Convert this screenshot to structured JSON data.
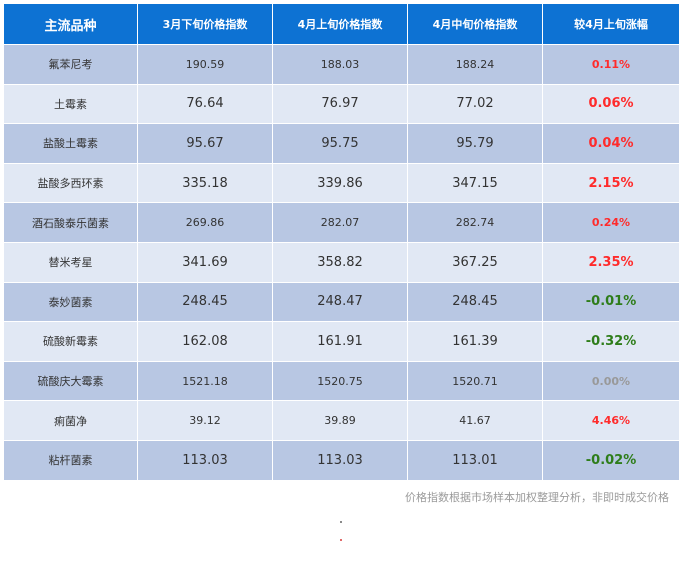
{
  "table": {
    "headers": [
      "主流品种",
      "3月下旬价格指数",
      "4月上旬价格指数",
      "4月中旬价格指数",
      "较4月上旬涨幅"
    ],
    "rows": [
      {
        "variety": "氟苯尼考",
        "mar_late": "190.59",
        "apr_early": "188.03",
        "apr_mid": "188.24",
        "change": "0.11%",
        "trend": "up",
        "small": true
      },
      {
        "variety": "土霉素",
        "mar_late": "76.64",
        "apr_early": "76.97",
        "apr_mid": "77.02",
        "change": "0.06%",
        "trend": "up",
        "small": false
      },
      {
        "variety": "盐酸土霉素",
        "mar_late": "95.67",
        "apr_early": "95.75",
        "apr_mid": "95.79",
        "change": "0.04%",
        "trend": "up",
        "small": false
      },
      {
        "variety": "盐酸多西环素",
        "mar_late": "335.18",
        "apr_early": "339.86",
        "apr_mid": "347.15",
        "change": "2.15%",
        "trend": "up",
        "small": false
      },
      {
        "variety": "酒石酸泰乐菌素",
        "mar_late": "269.86",
        "apr_early": "282.07",
        "apr_mid": "282.74",
        "change": "0.24%",
        "trend": "up",
        "small": true
      },
      {
        "variety": "替米考星",
        "mar_late": "341.69",
        "apr_early": "358.82",
        "apr_mid": "367.25",
        "change": "2.35%",
        "trend": "up",
        "small": false
      },
      {
        "variety": "泰妙菌素",
        "mar_late": "248.45",
        "apr_early": "248.47",
        "apr_mid": "248.45",
        "change": "-0.01%",
        "trend": "down",
        "small": false
      },
      {
        "variety": "硫酸新霉素",
        "mar_late": "162.08",
        "apr_early": "161.91",
        "apr_mid": "161.39",
        "change": "-0.32%",
        "trend": "down",
        "small": false
      },
      {
        "variety": "硫酸庆大霉素",
        "mar_late": "1521.18",
        "apr_early": "1520.75",
        "apr_mid": "1520.71",
        "change": "0.00%",
        "trend": "flat",
        "small": true
      },
      {
        "variety": "痢菌净",
        "mar_late": "39.12",
        "apr_early": "39.89",
        "apr_mid": "41.67",
        "change": "4.46%",
        "trend": "up",
        "small": true
      },
      {
        "variety": "粘杆菌素",
        "mar_late": "113.03",
        "apr_early": "113.03",
        "apr_mid": "113.01",
        "change": "-0.02%",
        "trend": "down",
        "small": false
      }
    ]
  },
  "footnote": "价格指数根据市场样本加权整理分析，非即时成交价格"
}
